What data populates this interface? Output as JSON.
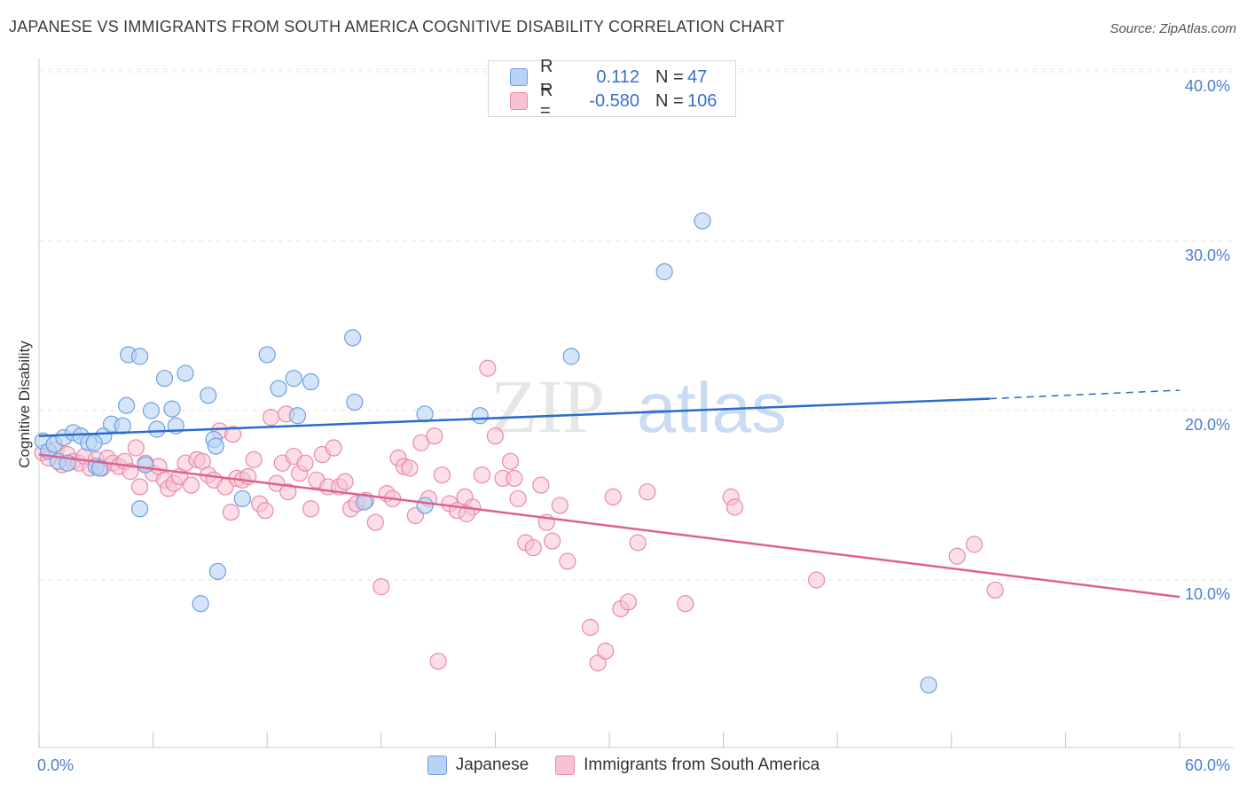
{
  "title": "JAPANESE VS IMMIGRANTS FROM SOUTH AMERICA COGNITIVE DISABILITY CORRELATION CHART",
  "source": "Source: ZipAtlas.com",
  "watermark": {
    "zip": "ZIP",
    "atlas": "atlas"
  },
  "legend": {
    "rows": [
      {
        "r_label": "R =",
        "r_value": "0.112",
        "n_label": "N =",
        "n_value": "47"
      },
      {
        "r_label": "R =",
        "r_value": "-0.580",
        "n_label": "N =",
        "n_value": "106"
      }
    ]
  },
  "bottom_legend": [
    "Japanese",
    "Immigrants from South America"
  ],
  "axes": {
    "y_label": "Cognitive Disability",
    "x_min_label": "0.0%",
    "x_max_label": "60.0%",
    "y_ticks": [
      "10.0%",
      "20.0%",
      "30.0%",
      "40.0%"
    ]
  },
  "colors": {
    "blue_fill": "#b8d3f5",
    "blue_stroke": "#6e9fdf",
    "blue_line": "#2a6ccb",
    "pink_fill": "#f7c3d3",
    "pink_stroke": "#e98aa8",
    "pink_line": "#e0608d",
    "axis_text": "#4a7fd0"
  },
  "chart_data": {
    "type": "scatter",
    "xlim": [
      0,
      60
    ],
    "ylim": [
      0,
      41
    ],
    "y_ticks": [
      10,
      20,
      30,
      40
    ],
    "grid": true,
    "series": [
      {
        "name": "Japanese",
        "trend": {
          "x0": 0,
          "y0": 18.5,
          "x1": 50,
          "y1": 20.7,
          "dash_to_x": 60,
          "dash_to_y": 21.2
        },
        "points": [
          [
            0.2,
            18.2
          ],
          [
            0.5,
            17.6
          ],
          [
            0.8,
            18.0
          ],
          [
            1.0,
            17.0
          ],
          [
            1.3,
            18.4
          ],
          [
            1.8,
            18.7
          ],
          [
            2.2,
            18.5
          ],
          [
            2.6,
            18.1
          ],
          [
            3.0,
            16.7
          ],
          [
            3.4,
            18.5
          ],
          [
            3.8,
            19.2
          ],
          [
            4.4,
            19.1
          ],
          [
            4.6,
            20.3
          ],
          [
            4.7,
            23.3
          ],
          [
            5.3,
            23.2
          ],
          [
            5.3,
            14.2
          ],
          [
            5.6,
            16.8
          ],
          [
            5.9,
            20.0
          ],
          [
            6.2,
            18.9
          ],
          [
            6.6,
            21.9
          ],
          [
            7.0,
            20.1
          ],
          [
            7.2,
            19.1
          ],
          [
            7.7,
            22.2
          ],
          [
            8.5,
            8.6
          ],
          [
            8.9,
            20.9
          ],
          [
            9.2,
            18.3
          ],
          [
            9.3,
            17.9
          ],
          [
            9.4,
            10.5
          ],
          [
            10.7,
            14.8
          ],
          [
            12.0,
            23.3
          ],
          [
            12.6,
            21.3
          ],
          [
            13.4,
            21.9
          ],
          [
            13.6,
            19.7
          ],
          [
            14.3,
            21.7
          ],
          [
            16.5,
            24.3
          ],
          [
            16.6,
            20.5
          ],
          [
            17.1,
            14.6
          ],
          [
            20.3,
            19.8
          ],
          [
            20.3,
            14.4
          ],
          [
            23.2,
            19.7
          ],
          [
            28.0,
            23.2
          ],
          [
            32.9,
            28.2
          ],
          [
            34.9,
            31.2
          ],
          [
            46.8,
            3.8
          ],
          [
            1.5,
            16.9
          ],
          [
            2.9,
            18.1
          ],
          [
            3.2,
            16.6
          ]
        ]
      },
      {
        "name": "Immigrants from South America",
        "trend": {
          "x0": 0,
          "y0": 17.4,
          "x1": 60,
          "y1": 9.0
        },
        "points": [
          [
            0.2,
            17.5
          ],
          [
            0.5,
            17.2
          ],
          [
            0.9,
            17.7
          ],
          [
            1.2,
            16.8
          ],
          [
            1.5,
            17.4
          ],
          [
            1.8,
            17.0
          ],
          [
            2.1,
            16.9
          ],
          [
            2.4,
            17.3
          ],
          [
            2.7,
            16.6
          ],
          [
            3.0,
            17.1
          ],
          [
            3.3,
            16.6
          ],
          [
            3.6,
            17.2
          ],
          [
            3.9,
            16.9
          ],
          [
            4.2,
            16.7
          ],
          [
            4.5,
            17.0
          ],
          [
            4.8,
            16.4
          ],
          [
            5.1,
            17.8
          ],
          [
            5.3,
            15.5
          ],
          [
            5.6,
            16.9
          ],
          [
            6.0,
            16.3
          ],
          [
            6.3,
            16.7
          ],
          [
            6.6,
            15.9
          ],
          [
            6.8,
            15.4
          ],
          [
            7.1,
            15.7
          ],
          [
            7.4,
            16.1
          ],
          [
            7.7,
            16.9
          ],
          [
            8.0,
            15.6
          ],
          [
            8.3,
            17.1
          ],
          [
            8.6,
            17.0
          ],
          [
            8.9,
            16.2
          ],
          [
            9.2,
            15.9
          ],
          [
            9.5,
            18.8
          ],
          [
            9.8,
            15.5
          ],
          [
            10.1,
            14.0
          ],
          [
            10.4,
            16.0
          ],
          [
            10.7,
            15.9
          ],
          [
            11.0,
            16.1
          ],
          [
            11.3,
            17.1
          ],
          [
            11.6,
            14.5
          ],
          [
            11.9,
            14.1
          ],
          [
            12.2,
            19.6
          ],
          [
            12.5,
            15.7
          ],
          [
            12.8,
            16.9
          ],
          [
            13.1,
            15.2
          ],
          [
            13.4,
            17.3
          ],
          [
            13.7,
            16.3
          ],
          [
            14.0,
            16.9
          ],
          [
            14.3,
            14.2
          ],
          [
            14.6,
            15.9
          ],
          [
            14.9,
            17.4
          ],
          [
            15.2,
            15.5
          ],
          [
            15.5,
            17.8
          ],
          [
            15.8,
            15.5
          ],
          [
            16.1,
            15.8
          ],
          [
            16.4,
            14.2
          ],
          [
            16.7,
            14.5
          ],
          [
            17.2,
            14.7
          ],
          [
            17.7,
            13.4
          ],
          [
            18.0,
            9.6
          ],
          [
            18.3,
            15.1
          ],
          [
            18.6,
            14.8
          ],
          [
            18.9,
            17.2
          ],
          [
            19.2,
            16.7
          ],
          [
            19.5,
            16.6
          ],
          [
            19.8,
            13.8
          ],
          [
            20.1,
            18.1
          ],
          [
            20.5,
            14.8
          ],
          [
            20.8,
            18.5
          ],
          [
            21.2,
            16.2
          ],
          [
            21.6,
            14.5
          ],
          [
            22.0,
            14.1
          ],
          [
            22.4,
            14.9
          ],
          [
            22.8,
            14.3
          ],
          [
            23.3,
            16.2
          ],
          [
            23.6,
            22.5
          ],
          [
            24.0,
            18.5
          ],
          [
            24.4,
            16.0
          ],
          [
            24.8,
            17.0
          ],
          [
            25.2,
            14.8
          ],
          [
            25.6,
            12.2
          ],
          [
            26.0,
            11.9
          ],
          [
            26.4,
            15.6
          ],
          [
            26.7,
            13.4
          ],
          [
            27.0,
            12.3
          ],
          [
            27.4,
            14.4
          ],
          [
            27.8,
            11.1
          ],
          [
            29.0,
            7.2
          ],
          [
            29.4,
            5.1
          ],
          [
            29.8,
            5.8
          ],
          [
            30.2,
            14.9
          ],
          [
            30.6,
            8.3
          ],
          [
            31.0,
            8.7
          ],
          [
            31.5,
            12.2
          ],
          [
            32.0,
            15.2
          ],
          [
            34.0,
            8.6
          ],
          [
            36.4,
            14.9
          ],
          [
            36.6,
            14.3
          ],
          [
            40.9,
            10.0
          ],
          [
            48.3,
            11.4
          ],
          [
            49.2,
            12.1
          ],
          [
            50.3,
            9.4
          ],
          [
            21.0,
            5.2
          ],
          [
            22.5,
            13.9
          ],
          [
            25.0,
            16.0
          ],
          [
            13.0,
            19.8
          ],
          [
            10.2,
            18.6
          ]
        ]
      }
    ]
  }
}
